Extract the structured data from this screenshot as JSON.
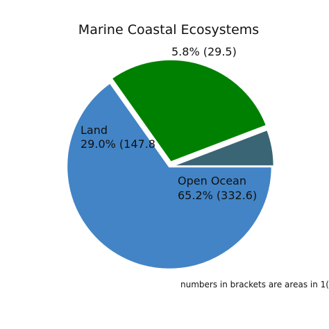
{
  "chart_data": {
    "type": "pie",
    "title": "Marine Coastal Ecosystems",
    "footnote": "numbers in brackets are areas in 1(",
    "slices": [
      {
        "name": "Open Ocean",
        "percent": 65.2,
        "value": 332.6,
        "color": "#4284c6",
        "explode": 0.0,
        "label_line1": "Open Ocean",
        "label_line2": "65.2% (332.6)"
      },
      {
        "name": "Land",
        "percent": 29.0,
        "value": 147.8,
        "color": "#008000",
        "explode": 0.045,
        "label_line1": "Land",
        "label_line2": "29.0% (147.8"
      },
      {
        "name": "",
        "percent": 5.8,
        "value": 29.5,
        "color": "#3a6575",
        "explode": 0.02,
        "label_line1": "5.8% (29.5)",
        "label_line2": ""
      }
    ]
  }
}
